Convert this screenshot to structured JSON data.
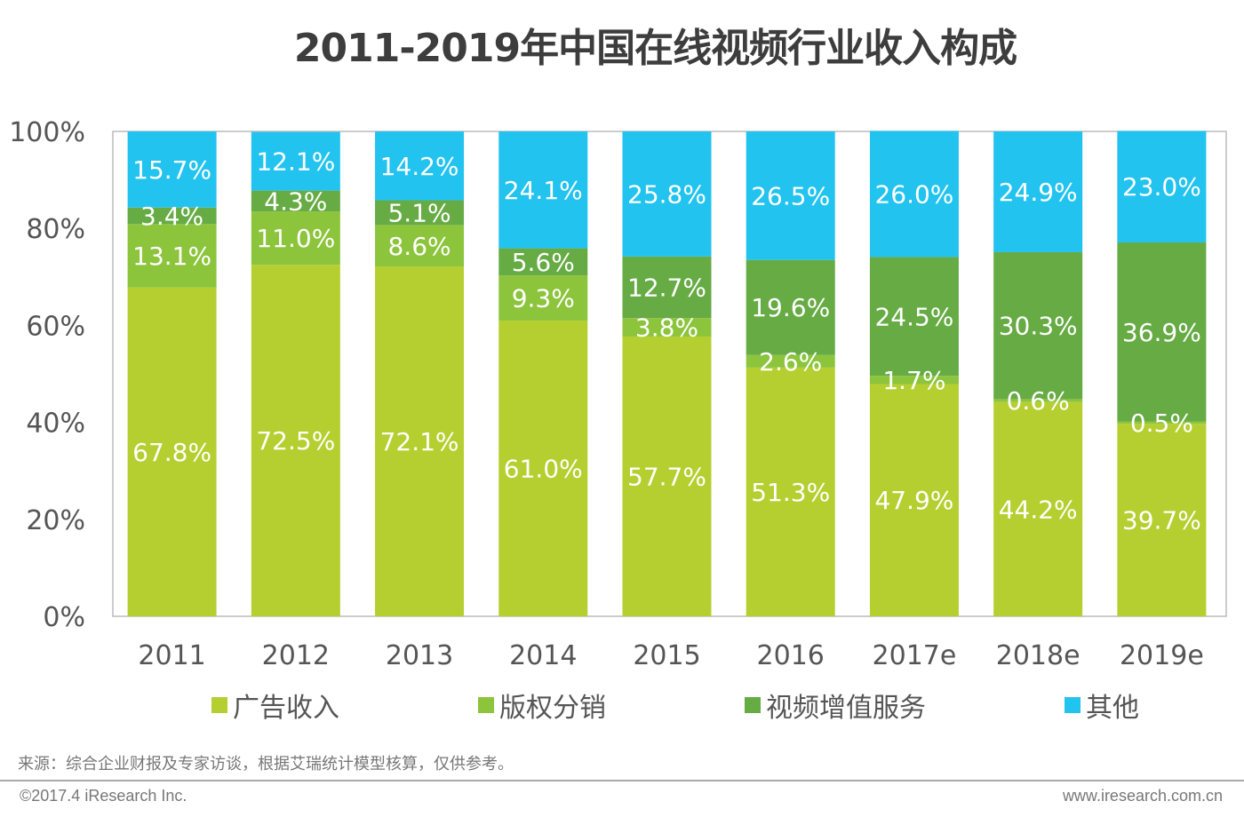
{
  "title": "2011-2019年中国在线视频行业收入构成",
  "chart_data": {
    "type": "bar",
    "stacked": true,
    "title": "2011-2019年中国在线视频行业收入构成",
    "xlabel": "",
    "ylabel": "",
    "ylim": [
      0,
      100
    ],
    "yticks": [
      "0%",
      "20%",
      "40%",
      "60%",
      "80%",
      "100%"
    ],
    "categories": [
      "2011",
      "2012",
      "2013",
      "2014",
      "2015",
      "2016",
      "2017e",
      "2018e",
      "2019e"
    ],
    "series": [
      {
        "name": "广告收入",
        "color": "#b5cf30",
        "values": [
          67.8,
          72.5,
          72.1,
          61.0,
          57.7,
          51.3,
          47.9,
          44.2,
          39.7
        ]
      },
      {
        "name": "版权分销",
        "color": "#8cc43c",
        "values": [
          13.1,
          11.0,
          8.6,
          9.3,
          3.8,
          2.6,
          1.7,
          0.6,
          0.5
        ]
      },
      {
        "name": "视频增值服务",
        "color": "#66ab44",
        "values": [
          3.4,
          4.3,
          5.1,
          5.6,
          12.7,
          19.6,
          24.5,
          30.3,
          36.9
        ]
      },
      {
        "name": "其他",
        "color": "#22c3ef",
        "values": [
          15.7,
          12.1,
          14.2,
          24.1,
          25.8,
          26.5,
          26.0,
          24.9,
          23.0
        ]
      }
    ],
    "legend_position": "bottom",
    "grid": false
  },
  "legend": [
    {
      "label": "广告收入",
      "color": "#b5cf30"
    },
    {
      "label": "版权分销",
      "color": "#8cc43c"
    },
    {
      "label": "视频增值服务",
      "color": "#66ab44"
    },
    {
      "label": "其他",
      "color": "#22c3ef"
    }
  ],
  "footer": {
    "source": "来源：综合企业财报及专家访谈，根据艾瑞统计模型核算，仅供参考。",
    "copyright": "©2017.4 iResearch Inc.",
    "website": "www.iresearch.com.cn"
  }
}
